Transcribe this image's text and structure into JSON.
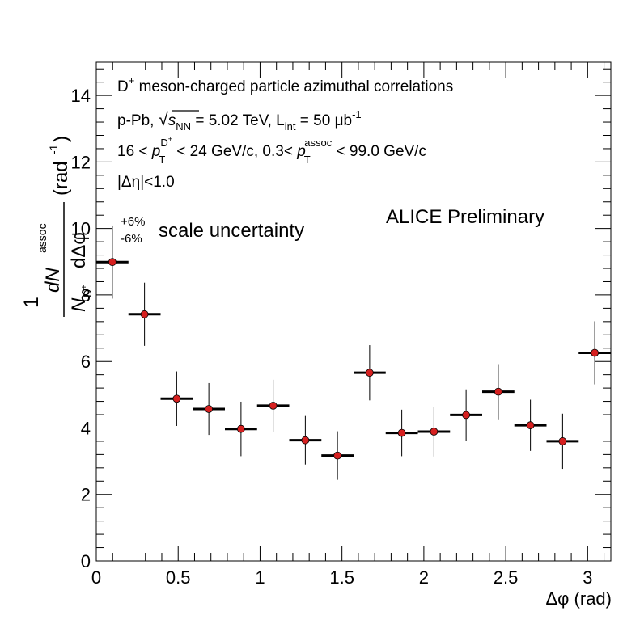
{
  "figure": {
    "lines": [
      {
        "main": "D",
        "sup": "+",
        "rest": " meson-charged particle azimuthal correlations"
      },
      {
        "main": "p-Pb, ",
        "sqrt_sym": "√",
        "s": "s",
        "s_sub": "NN",
        "after_s": " = 5.02 TeV, L",
        "l_sub": "int",
        "after_l": " = 50 μb",
        "l_sup": "-1"
      },
      {
        "a": "16 < ",
        "p": "p",
        "p_sub": "T",
        "p_sup_main": "D",
        "p_sup_sup": "+",
        "b": " < 24 GeV/c, 0.3< ",
        "p2": "p",
        "p2_sub": "T",
        "p2_sup": "assoc",
        "c": " < 99.0 GeV/c"
      },
      {
        "text": "|Δη|<1.0"
      }
    ],
    "scale_unc": {
      "plus": "+6%",
      "minus": "-6%",
      "label": "scale uncertainty"
    },
    "alice": "ALICE Preliminary",
    "ylabel": {
      "one": "1",
      "dN": "dN",
      "assoc": "assoc",
      "N": "N",
      "N_sub_main": "D",
      "N_sub_sup": "+",
      "dphi": "dΔφ",
      "unit_open": "(rad",
      "unit_sup": "-1",
      "unit_close": ")"
    },
    "xlabel": "Δφ (rad)"
  },
  "chart_data": {
    "type": "scatter",
    "xlim": [
      0,
      3.1416
    ],
    "ylim": [
      0,
      15
    ],
    "x_ticks": [
      "0",
      "0.5",
      "1",
      "1.5",
      "2",
      "2.5",
      "3"
    ],
    "y_ticks": [
      "0",
      "2",
      "4",
      "6",
      "8",
      "10",
      "12",
      "14"
    ],
    "marker_color": "#d62020",
    "points": [
      {
        "x": 0.0982,
        "y": 8.99,
        "xerr": 0.0982,
        "yerr": 1.1
      },
      {
        "x": 0.2945,
        "y": 7.42,
        "xerr": 0.0982,
        "yerr": 0.95
      },
      {
        "x": 0.4909,
        "y": 4.88,
        "xerr": 0.0982,
        "yerr": 0.82
      },
      {
        "x": 0.6872,
        "y": 4.57,
        "xerr": 0.0982,
        "yerr": 0.78
      },
      {
        "x": 0.8836,
        "y": 3.97,
        "xerr": 0.0982,
        "yerr": 0.82
      },
      {
        "x": 1.0799,
        "y": 4.67,
        "xerr": 0.0982,
        "yerr": 0.78
      },
      {
        "x": 1.2763,
        "y": 3.63,
        "xerr": 0.0982,
        "yerr": 0.73
      },
      {
        "x": 1.4726,
        "y": 3.17,
        "xerr": 0.0982,
        "yerr": 0.73
      },
      {
        "x": 1.669,
        "y": 5.66,
        "xerr": 0.0982,
        "yerr": 0.83
      },
      {
        "x": 1.8653,
        "y": 3.85,
        "xerr": 0.0982,
        "yerr": 0.7
      },
      {
        "x": 2.0617,
        "y": 3.89,
        "xerr": 0.0982,
        "yerr": 0.75
      },
      {
        "x": 2.258,
        "y": 4.39,
        "xerr": 0.0982,
        "yerr": 0.77
      },
      {
        "x": 2.4544,
        "y": 5.09,
        "xerr": 0.0982,
        "yerr": 0.83
      },
      {
        "x": 2.6507,
        "y": 4.08,
        "xerr": 0.0982,
        "yerr": 0.77
      },
      {
        "x": 2.8471,
        "y": 3.6,
        "xerr": 0.0982,
        "yerr": 0.83
      },
      {
        "x": 3.0434,
        "y": 6.26,
        "xerr": 0.0982,
        "yerr": 0.95
      }
    ]
  }
}
